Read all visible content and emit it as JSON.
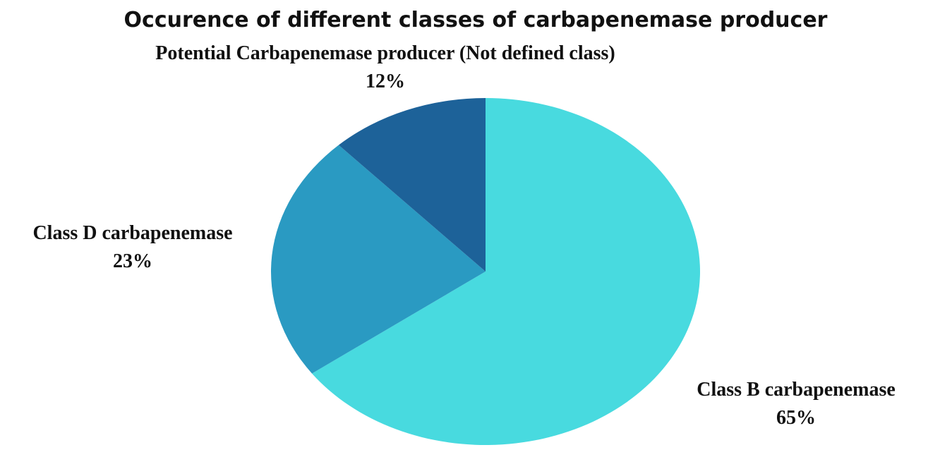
{
  "chart_data": {
    "type": "pie",
    "title": "Occurence of different classes of carbapenemase producer",
    "slices": [
      {
        "label": "Class B carbapenemase",
        "value": 65,
        "display_value": "65%",
        "color": "#48DADF"
      },
      {
        "label": "Class D carbapenemase",
        "value": 23,
        "display_value": "23%",
        "color": "#2A9AC2"
      },
      {
        "label": "Potential Carbapenemase producer (Not defined class)",
        "value": 12,
        "display_value": "12%",
        "color": "#1D6299"
      }
    ],
    "start_angle": "12 o'clock",
    "direction": "clockwise",
    "legend": "none",
    "labels": "outside slices"
  }
}
